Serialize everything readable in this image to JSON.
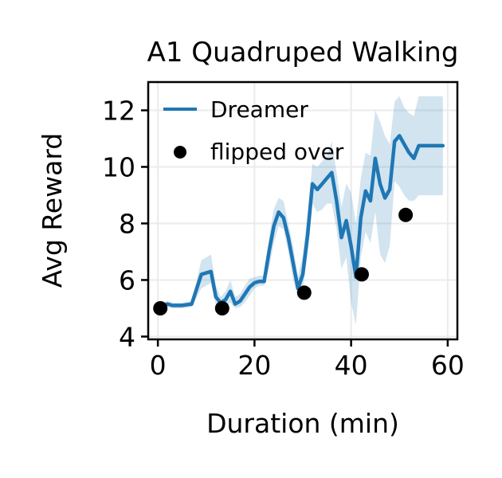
{
  "chart_data": {
    "type": "line",
    "title": "A1 Quadruped Walking",
    "xlabel": "Duration (min)",
    "ylabel": "Avg Reward",
    "xlim": [
      -2,
      62
    ],
    "ylim": [
      3.9,
      13
    ],
    "xticks": [
      0,
      20,
      40,
      60
    ],
    "yticks": [
      4,
      6,
      8,
      10,
      12
    ],
    "grid": true,
    "legend_position": "upper-left",
    "colors": {
      "line": "#1f77b4",
      "band": "#1f77b4",
      "points": "#000000"
    },
    "series": [
      {
        "name": "Dreamer",
        "kind": "line",
        "x": [
          1,
          2,
          3,
          5,
          7,
          9,
          11,
          12,
          13,
          14,
          15,
          16,
          17,
          18,
          19,
          20,
          21,
          22,
          23,
          24,
          25,
          26,
          27,
          28,
          29,
          30,
          31,
          32,
          33,
          34,
          35,
          36,
          37,
          38,
          39,
          40,
          41,
          42,
          43,
          44,
          45,
          46,
          47,
          48,
          49,
          50,
          51,
          52,
          53,
          54,
          55,
          56,
          57,
          58,
          59
        ],
        "y": [
          5.1,
          5.15,
          5.1,
          5.1,
          5.15,
          6.2,
          6.3,
          5.4,
          5.2,
          5.3,
          5.6,
          5.15,
          5.25,
          5.5,
          5.75,
          5.9,
          5.95,
          5.95,
          7.0,
          7.9,
          8.4,
          8.2,
          7.5,
          6.6,
          5.7,
          6.2,
          7.6,
          9.4,
          9.2,
          9.4,
          9.6,
          9.8,
          8.8,
          7.5,
          8.1,
          7.2,
          6.1,
          8.2,
          9.15,
          8.8,
          10.3,
          9.4,
          8.9,
          9.2,
          10.9,
          11.1,
          10.8,
          10.5,
          10.3,
          10.75,
          10.75,
          10.75,
          10.75,
          10.75,
          10.75
        ],
        "band_lower": [
          5.0,
          5.05,
          5.0,
          5.0,
          5.05,
          5.7,
          5.9,
          5.1,
          5.0,
          5.05,
          5.2,
          5.0,
          5.05,
          5.2,
          5.45,
          5.7,
          5.8,
          5.8,
          6.4,
          7.3,
          7.9,
          7.8,
          7.0,
          6.0,
          5.4,
          5.7,
          6.9,
          8.7,
          8.4,
          8.5,
          8.7,
          8.7,
          7.8,
          6.4,
          6.8,
          5.2,
          4.4,
          6.8,
          7.7,
          7.3,
          8.4,
          6.9,
          6.6,
          7.2,
          9.5,
          9.3,
          9.0,
          8.8,
          8.8,
          9.0,
          9.0,
          9.0,
          9.0,
          9.0,
          9.0
        ],
        "band_upper": [
          5.2,
          5.25,
          5.2,
          5.2,
          5.25,
          6.7,
          6.9,
          5.8,
          5.4,
          5.6,
          6.0,
          5.4,
          5.5,
          5.8,
          6.05,
          6.1,
          6.15,
          6.15,
          7.5,
          8.5,
          8.9,
          8.8,
          8.0,
          7.2,
          6.1,
          6.9,
          8.4,
          10.1,
          10.0,
          10.2,
          10.4,
          10.9,
          9.8,
          8.6,
          9.4,
          9.1,
          8.0,
          9.6,
          10.5,
          10.4,
          12.0,
          11.6,
          11.1,
          10.8,
          12.3,
          12.5,
          12.1,
          11.9,
          11.8,
          12.5,
          12.5,
          12.5,
          12.5,
          12.5,
          12.5
        ]
      },
      {
        "name": "flipped over",
        "kind": "scatter",
        "x": [
          0.5,
          13.3,
          30.3,
          42.2,
          51.3
        ],
        "y": [
          5.0,
          5.0,
          5.55,
          6.2,
          8.3
        ]
      }
    ]
  }
}
